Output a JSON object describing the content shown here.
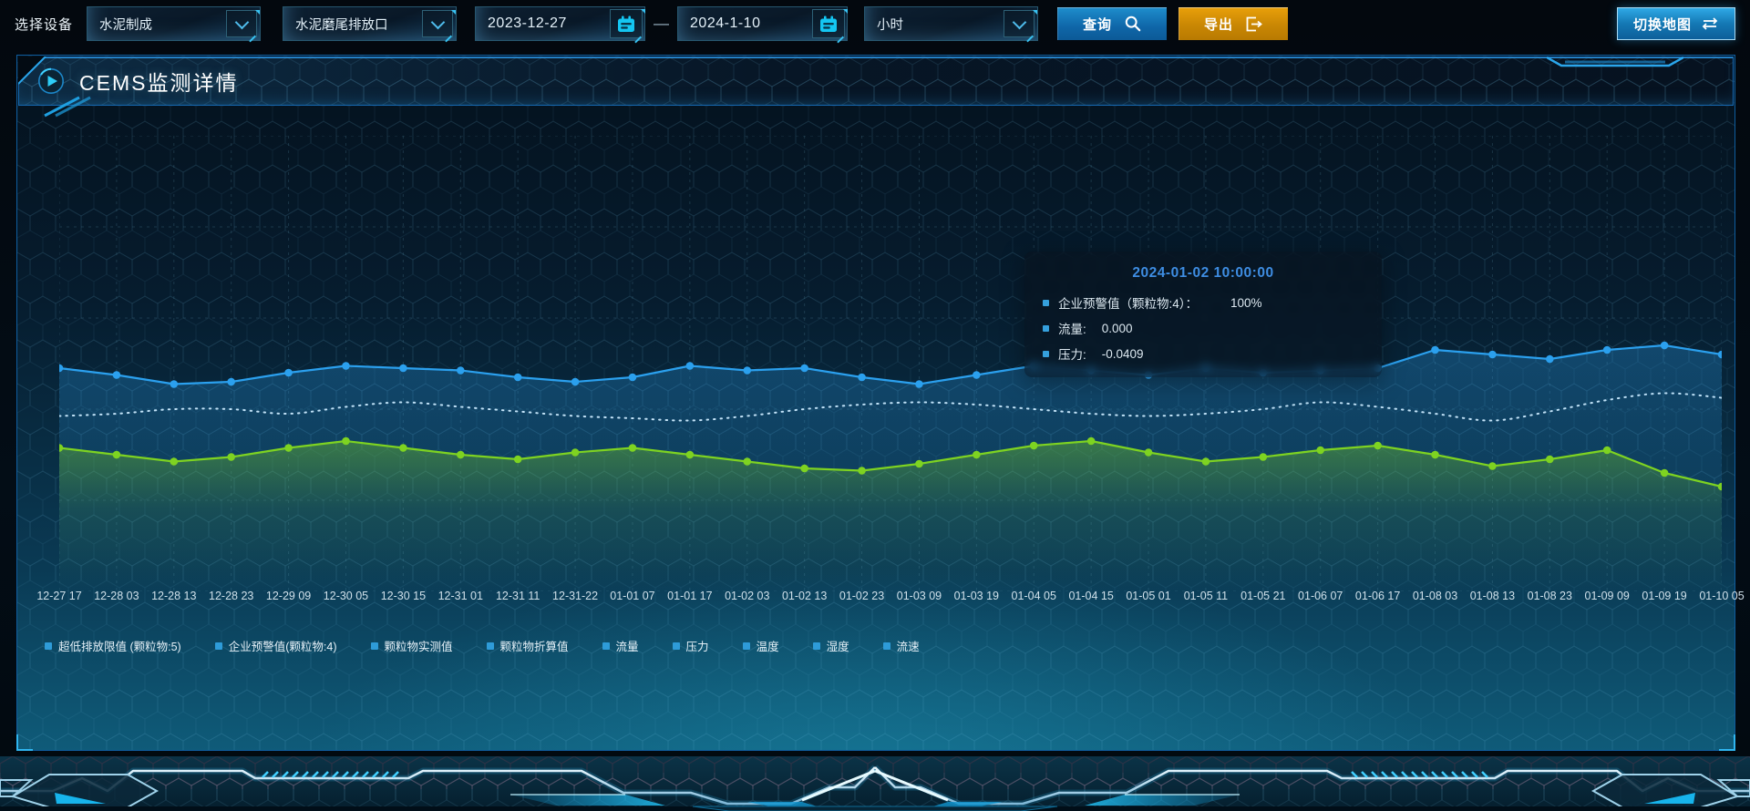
{
  "toolbar": {
    "device_label": "选择设备",
    "device_value": "水泥制成",
    "outlet_value": "水泥磨尾排放口",
    "date_start": "2023-12-27",
    "date_separator": "—",
    "date_end": "2024-1-10",
    "interval_value": "小时",
    "query_label": "查询",
    "export_label": "导出",
    "switch_map_label": "切换地图"
  },
  "panel": {
    "title": "CEMS监测详情"
  },
  "tooltip": {
    "timestamp": "2024-01-02 10:00:00",
    "marker_color": "#35a0dd",
    "rows": [
      {
        "label": "企业预警值（颗粒物:4）：",
        "value": "100%"
      },
      {
        "label": "流量:",
        "value": "0.000"
      },
      {
        "label": "压力:",
        "value": "-0.0409"
      }
    ]
  },
  "chart_data": {
    "type": "line",
    "title": "",
    "xlabel": "",
    "ylabel": "",
    "grid": true,
    "legend_position": "bottom",
    "ylim": [
      0,
      200
    ],
    "x": [
      "12-27 17",
      "12-28 03",
      "12-28 13",
      "12-28 23",
      "12-29 09",
      "12-30 05",
      "12-30 15",
      "12-31 01",
      "12-31 11",
      "12-31-22",
      "01-01 07",
      "01-01 17",
      "01-02 03",
      "01-02 13",
      "01-02 23",
      "01-03 09",
      "01-03 19",
      "01-04 05",
      "01-04 15",
      "01-05 01",
      "01-05 11",
      "01-05 21",
      "01-06 07",
      "01-06 17",
      "01-08 03",
      "01-08 13",
      "01-08 23",
      "01-09 09",
      "01-09 19",
      "01-10 05"
    ],
    "legend": [
      "超低排放限值 (颗粒物:5)",
      "企业预警值(颗粒物:4)",
      "颗粒物实测值",
      "颗粒物折算值",
      "流量",
      "压力",
      "温度",
      "湿度",
      "流速"
    ],
    "legend_marker_color": "#2e9bd8",
    "series": [
      {
        "name": "超低排放限值 (颗粒物:5)",
        "color": "#ecf5fa",
        "style": "dotted",
        "smooth": true,
        "markers": false,
        "values": [
          77,
          78,
          80,
          80,
          78,
          81,
          83,
          81,
          79,
          77,
          76,
          75,
          77,
          80,
          82,
          83,
          82,
          80,
          78,
          77,
          78,
          80,
          83,
          81,
          78,
          75,
          79,
          84,
          87,
          85
        ]
      },
      {
        "name": "企业预警值(颗粒物:4)",
        "color": "#2ba0ee",
        "style": "solid",
        "smooth": false,
        "markers": true,
        "area_fill": "areaBlue",
        "values": [
          98,
          95,
          91,
          92,
          96,
          99,
          98,
          97,
          94,
          92,
          94,
          99,
          97,
          98,
          94,
          91,
          95,
          99,
          97,
          95,
          98,
          96,
          97,
          98,
          106,
          104,
          102,
          106,
          108,
          104
        ]
      },
      {
        "name": "颗粒物实测值",
        "color": "#7ed321",
        "style": "solid",
        "smooth": false,
        "markers": true,
        "area_fill": "areaGreen",
        "values": [
          63,
          60,
          57,
          59,
          63,
          66,
          63,
          60,
          58,
          61,
          63,
          60,
          57,
          54,
          53,
          56,
          60,
          64,
          66,
          61,
          57,
          59,
          62,
          64,
          60,
          55,
          58,
          62,
          52,
          46
        ]
      }
    ]
  },
  "colors": {
    "accent_blue": "#2aa6ec",
    "accent_cyan": "#19c0f0",
    "accent_orange": "#e79d08",
    "accent_green": "#7ed321",
    "tooltip_title": "#3e8de2"
  }
}
